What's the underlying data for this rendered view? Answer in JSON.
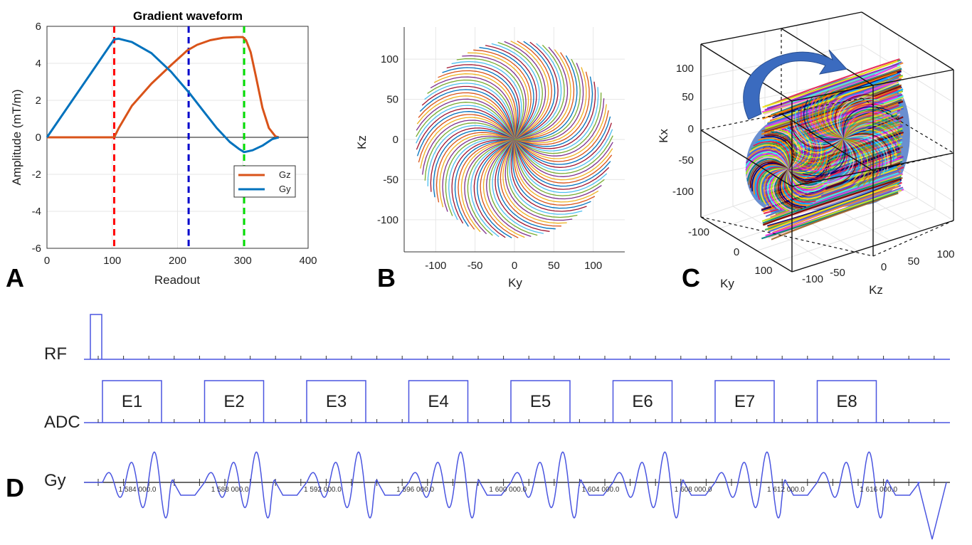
{
  "colors": {
    "gz": "#D95319",
    "gy": "#0072BD",
    "red": "#FF0000",
    "blue": "#0000CC",
    "green": "#00DD00",
    "seq": "#4A55E0",
    "arrow": "#3B6BBF"
  },
  "chart_data": [
    {
      "id": "A",
      "type": "line",
      "title": "Gradient waveform",
      "xlabel": "Readout",
      "ylabel": "Amplitude (mT/m)",
      "xlim": [
        0,
        400
      ],
      "ylim": [
        -6,
        6
      ],
      "xticks": [
        0,
        100,
        200,
        300,
        400
      ],
      "yticks": [
        6,
        4,
        2,
        0,
        -2,
        -4,
        -6
      ],
      "grid": true,
      "legend": {
        "placement": "bottom-right",
        "entries": [
          "Gz",
          "Gy"
        ]
      },
      "series": [
        {
          "name": "Gz",
          "x": [
            0,
            103,
            110,
            130,
            160,
            190,
            215,
            230,
            250,
            270,
            290,
            300,
            305,
            312,
            320,
            330,
            340,
            350,
            355
          ],
          "y": [
            0,
            0,
            0.5,
            1.7,
            2.9,
            3.9,
            4.7,
            5.0,
            5.25,
            5.38,
            5.42,
            5.42,
            5.25,
            4.6,
            3.3,
            1.6,
            0.5,
            0.05,
            0
          ]
        },
        {
          "name": "Gy",
          "x": [
            0,
            103,
            110,
            130,
            160,
            190,
            218,
            240,
            260,
            280,
            295,
            302,
            315,
            330,
            345,
            355
          ],
          "y": [
            0,
            5.3,
            5.33,
            5.15,
            4.55,
            3.55,
            2.4,
            1.4,
            0.5,
            -0.25,
            -0.65,
            -0.8,
            -0.7,
            -0.45,
            -0.1,
            0
          ]
        }
      ],
      "vlines": [
        {
          "x": 103,
          "color": "red"
        },
        {
          "x": 217,
          "color": "blue"
        },
        {
          "x": 302,
          "color": "green"
        }
      ]
    },
    {
      "id": "B",
      "type": "line",
      "title": "",
      "xlabel": "Ky",
      "ylabel": "Kz",
      "xlim": [
        -140,
        140
      ],
      "ylim": [
        -140,
        140
      ],
      "xticks": [
        -100,
        -50,
        0,
        50,
        100
      ],
      "yticks": [
        100,
        50,
        0,
        -50,
        -100
      ],
      "grid": true,
      "spokes": 96,
      "radius": 125,
      "twist": 0.85
    },
    {
      "id": "C",
      "type": "scatter",
      "title": "",
      "xlabel": "Kz",
      "ylabel": "Ky",
      "zlabel": "Kx",
      "zticks": [
        100,
        50,
        0,
        -50,
        -100
      ],
      "yticks": [
        -100,
        0,
        100
      ],
      "xticks": [
        -100,
        -50,
        0,
        50,
        100
      ]
    },
    {
      "id": "D",
      "type": "line",
      "rows": [
        "RF",
        "ADC",
        "Gy"
      ],
      "echoes": [
        "E1",
        "E2",
        "E3",
        "E4",
        "E5",
        "E6",
        "E7",
        "E8"
      ],
      "time_labels": [
        "1 584 000.0",
        "1 588 000.0",
        "1 592 000.0",
        "1 596 000.0",
        "1 600 000.0",
        "1 604 000.0",
        "1 608 000.0",
        "1 612 000.0",
        "1 616 000.0"
      ]
    }
  ],
  "panel_labels": [
    "A",
    "B",
    "C",
    "D"
  ]
}
